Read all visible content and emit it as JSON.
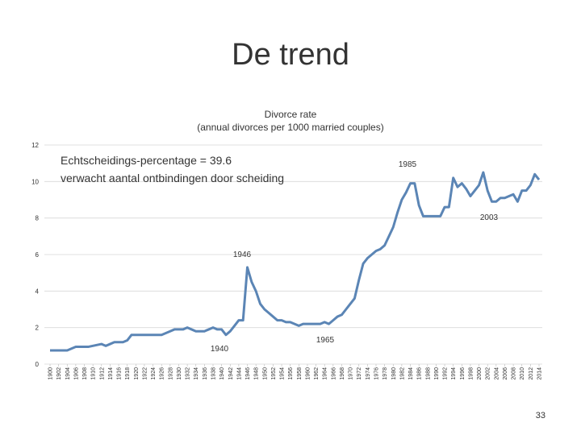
{
  "slide_title": "De trend",
  "page_number": "33",
  "chart_data": {
    "type": "line",
    "title": "Divorce rate",
    "subtitle": "(annual divorces per 1000 married couples)",
    "annotations": [
      "Echtscheidings-percentage = 39.6",
      "verwacht aantal ontbindingen door scheiding",
      "1985",
      "2003",
      "1946",
      "1965",
      "1940"
    ],
    "x": [
      1900,
      1901,
      1902,
      1903,
      1904,
      1905,
      1906,
      1907,
      1908,
      1909,
      1910,
      1911,
      1912,
      1913,
      1914,
      1915,
      1916,
      1917,
      1918,
      1919,
      1920,
      1921,
      1922,
      1923,
      1924,
      1925,
      1926,
      1927,
      1928,
      1929,
      1930,
      1931,
      1932,
      1933,
      1934,
      1935,
      1936,
      1937,
      1938,
      1939,
      1940,
      1941,
      1942,
      1943,
      1944,
      1945,
      1946,
      1947,
      1948,
      1949,
      1950,
      1951,
      1952,
      1953,
      1954,
      1955,
      1956,
      1957,
      1958,
      1959,
      1960,
      1961,
      1962,
      1963,
      1964,
      1965,
      1966,
      1967,
      1968,
      1969,
      1970,
      1971,
      1972,
      1973,
      1974,
      1975,
      1976,
      1977,
      1978,
      1979,
      1980,
      1981,
      1982,
      1983,
      1984,
      1985,
      1986,
      1987,
      1988,
      1989,
      1990,
      1991,
      1992,
      1993,
      1994,
      1995,
      1996,
      1997,
      1998,
      1999,
      2000,
      2001,
      2002,
      2003,
      2004,
      2005,
      2006,
      2007,
      2008,
      2009,
      2010,
      2011,
      2012,
      2013,
      2014
    ],
    "series": [
      {
        "name": "Divorce rate",
        "color": "#5b85b5",
        "values": [
          0.75,
          0.75,
          0.75,
          0.75,
          0.75,
          0.85,
          0.95,
          0.95,
          0.95,
          0.95,
          1.0,
          1.05,
          1.1,
          1.0,
          1.1,
          1.2,
          1.2,
          1.2,
          1.3,
          1.6,
          1.6,
          1.6,
          1.6,
          1.6,
          1.6,
          1.6,
          1.6,
          1.7,
          1.8,
          1.9,
          1.9,
          1.9,
          2.0,
          1.9,
          1.8,
          1.8,
          1.8,
          1.9,
          2.0,
          1.9,
          1.9,
          1.6,
          1.8,
          2.1,
          2.4,
          2.4,
          5.3,
          4.5,
          4.0,
          3.3,
          3.0,
          2.8,
          2.6,
          2.4,
          2.4,
          2.3,
          2.3,
          2.2,
          2.1,
          2.2,
          2.2,
          2.2,
          2.2,
          2.2,
          2.3,
          2.2,
          2.4,
          2.6,
          2.7,
          3.0,
          3.3,
          3.6,
          4.6,
          5.5,
          5.8,
          6.0,
          6.2,
          6.3,
          6.5,
          7.0,
          7.5,
          8.3,
          9.0,
          9.4,
          9.9,
          9.9,
          8.7,
          8.1,
          8.1,
          8.1,
          8.1,
          8.1,
          8.6,
          8.6,
          10.2,
          9.7,
          9.9,
          9.6,
          9.2,
          9.5,
          9.8,
          10.5,
          9.5,
          8.9,
          8.9,
          9.1,
          9.1,
          9.2,
          9.3,
          8.9,
          9.5,
          9.5,
          9.8,
          10.4,
          10.1
        ]
      }
    ],
    "xlim": [
      1900,
      2014
    ],
    "xticks": [
      1900,
      1902,
      1904,
      1906,
      1908,
      1910,
      1912,
      1914,
      1916,
      1918,
      1920,
      1922,
      1924,
      1926,
      1928,
      1930,
      1932,
      1934,
      1936,
      1938,
      1940,
      1942,
      1944,
      1946,
      1948,
      1950,
      1952,
      1954,
      1956,
      1958,
      1960,
      1962,
      1964,
      1966,
      1968,
      1970,
      1972,
      1974,
      1976,
      1978,
      1980,
      1982,
      1984,
      1986,
      1988,
      1990,
      1992,
      1994,
      1996,
      1998,
      2000,
      2002,
      2004,
      2006,
      2008,
      2010,
      2012,
      2014
    ],
    "ylim": [
      0,
      12
    ],
    "yticks": [
      0,
      2,
      4,
      6,
      8,
      10,
      12
    ],
    "grid": true
  }
}
